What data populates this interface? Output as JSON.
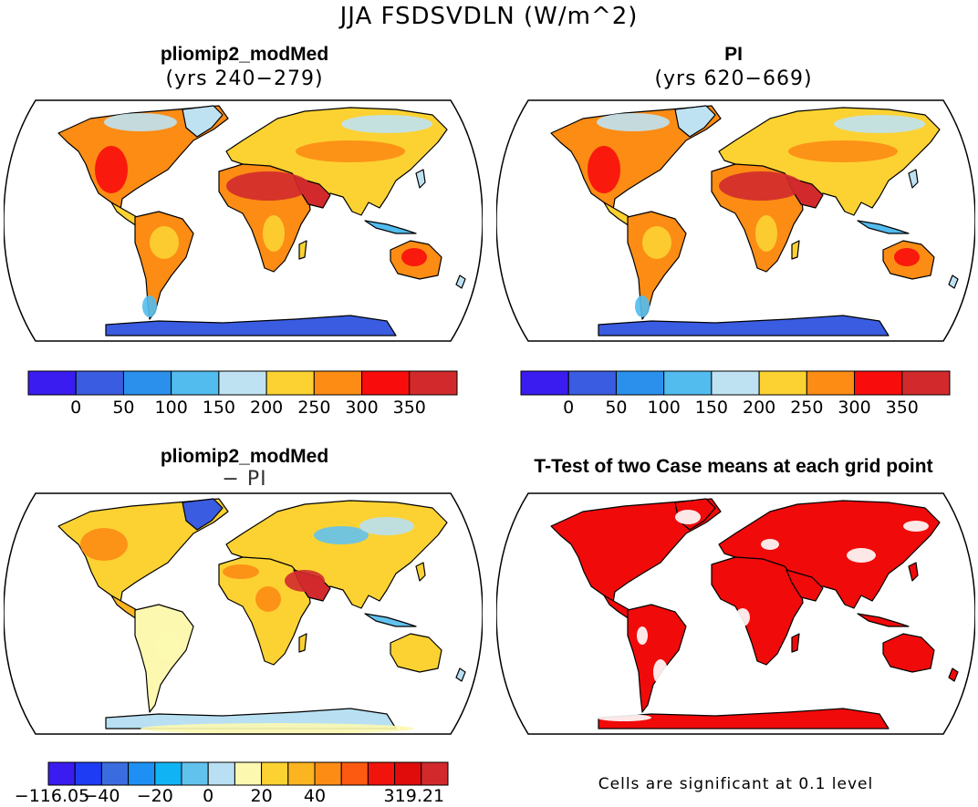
{
  "title": "JJA FSDSVDLN (W/m^2)",
  "panels": [
    {
      "id": "top-left",
      "title": "pliomip2_modMed",
      "subtitle": "(yrs 240−279)"
    },
    {
      "id": "top-right",
      "title": "PI",
      "subtitle": "(yrs 620−669)"
    },
    {
      "id": "bottom-left",
      "title": "pliomip2_modMed",
      "subtitle": "− PI"
    },
    {
      "id": "bottom-right",
      "title": "T-Test of two Case means at each grid point",
      "subtitle": ""
    }
  ],
  "colorbar_abs": {
    "colors": [
      "#3a1cf0",
      "#3a5ce0",
      "#2a90ec",
      "#52bcee",
      "#bfe2f2",
      "#fcd232",
      "#fc8c14",
      "#f80c0c",
      "#d22a2c"
    ],
    "labels": [
      "0",
      "50",
      "100",
      "150",
      "200",
      "250",
      "300",
      "350"
    ]
  },
  "colorbar_diff": {
    "colors": [
      "#3a1cf0",
      "#1e3cf4",
      "#3a6ce0",
      "#1e90f4",
      "#10b4f4",
      "#62c2ee",
      "#b8e0f2",
      "#fcf8b0",
      "#fcd232",
      "#fcb420",
      "#fc8c14",
      "#fc5a10",
      "#f0140c",
      "#e00c0c",
      "#d22a2c"
    ],
    "labels": [
      "−116.05",
      "−40",
      "−20",
      "0",
      "20",
      "40",
      "319.21"
    ],
    "label_slots": [
      0,
      2,
      4,
      6,
      8,
      10,
      14
    ]
  },
  "ttest_note": "Cells are significant at 0.1 level",
  "map_colors": {
    "ocean": "#ffffff",
    "antarctica_abs": "#3a5ce0",
    "significant": "#f00a0a"
  }
}
